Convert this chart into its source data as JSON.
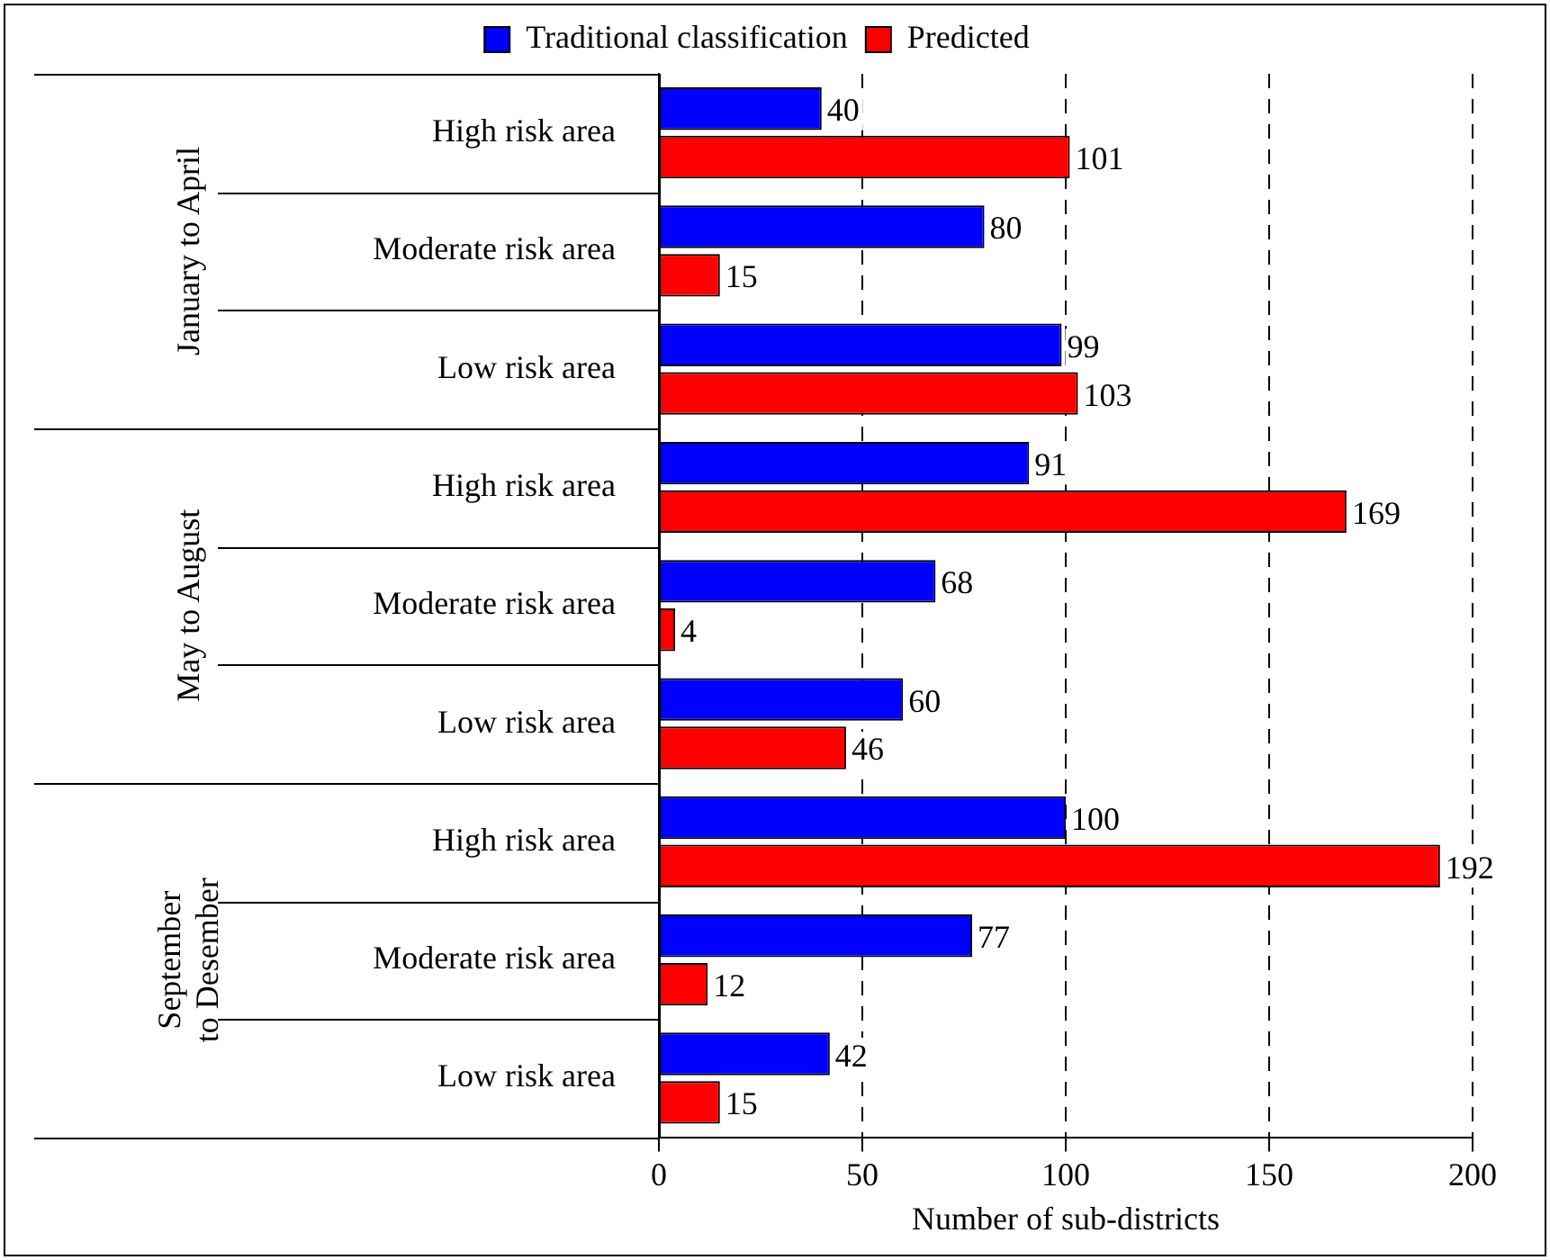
{
  "chart_data": {
    "type": "bar",
    "orientation": "horizontal",
    "xlabel": "Number of sub-districts",
    "categories": [
      "High risk area",
      "Moderate risk area",
      "Low risk area",
      "High risk area",
      "Moderate risk area",
      "Low risk area",
      "High risk area",
      "Moderate risk area",
      "Low risk area"
    ],
    "series": [
      {
        "name": "Traditional classification",
        "color": "#0000ff",
        "values": [
          40,
          80,
          99,
          91,
          68,
          60,
          100,
          77,
          42
        ]
      },
      {
        "name": "Predicted",
        "color": "#ff0000",
        "values": [
          101,
          15,
          103,
          169,
          4,
          46,
          192,
          12,
          15
        ]
      }
    ],
    "xlim": [
      0,
      200
    ],
    "xticks": [
      0,
      50,
      100,
      150,
      200
    ],
    "grid": "x",
    "legend": "top",
    "data_labels": true,
    "annotations": [
      "January to April",
      "May to August",
      "September to Desember"
    ]
  }
}
